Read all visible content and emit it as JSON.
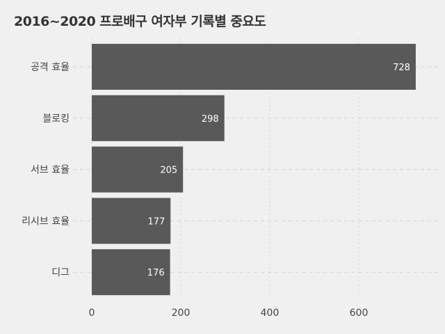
{
  "chart_data": {
    "type": "bar",
    "orientation": "horizontal",
    "title": "2016~2020 프로배구 여자부 기록별 중요도",
    "xlabel": "",
    "ylabel": "",
    "categories": [
      "공격 효율",
      "블로킹",
      "서브 효율",
      "리시브 효율",
      "디그"
    ],
    "values": [
      728,
      298,
      205,
      177,
      176
    ],
    "xlim": [
      0,
      728
    ],
    "xticks": [
      0,
      200,
      400,
      600
    ],
    "grid": true,
    "bar_color": "#595959",
    "background": "#f0f0f0"
  }
}
